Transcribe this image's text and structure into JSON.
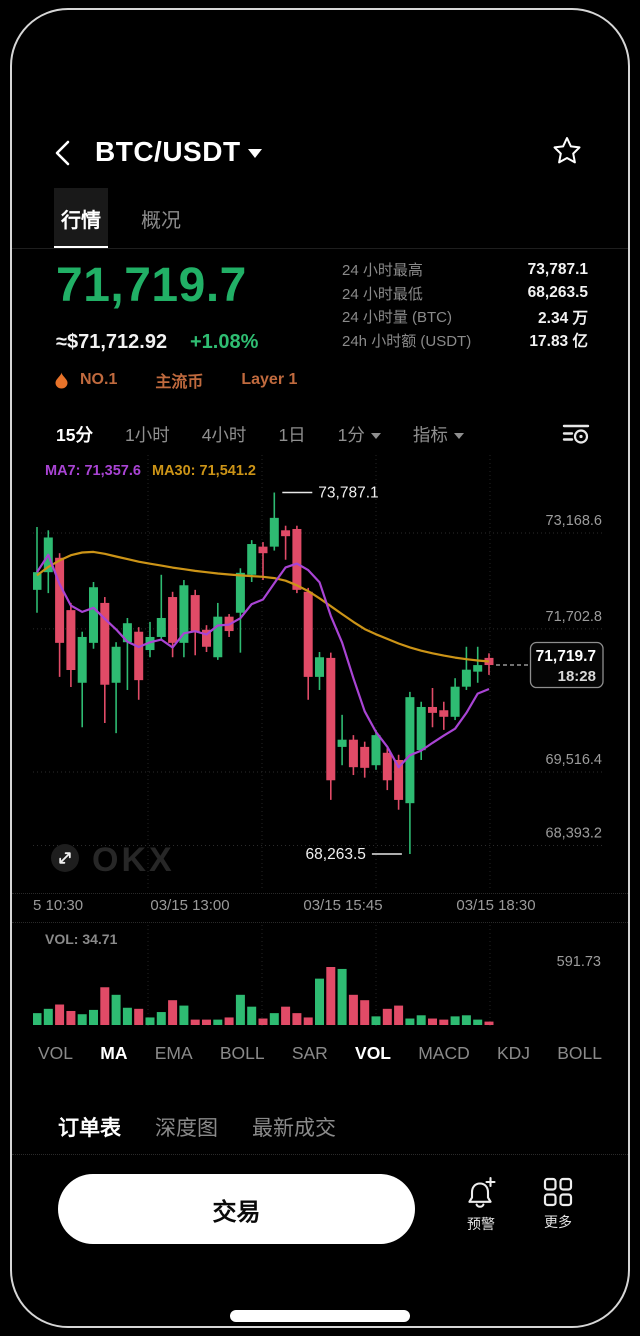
{
  "header": {
    "title": "BTC/USDT"
  },
  "nav_tabs": {
    "items": [
      {
        "label": "行情"
      },
      {
        "label": "概况"
      }
    ],
    "active_index": 0
  },
  "price_panel": {
    "last_price": "71,719.7",
    "fiat_value": "≈$71,712.92",
    "change_pct": "+1.08%",
    "rank_badge": "NO.1",
    "tag_mainstream": "主流币",
    "tag_layer": "Layer 1"
  },
  "stats": {
    "rows": [
      {
        "label": "24 小时最高",
        "value": "73,787.1"
      },
      {
        "label": "24 小时最低",
        "value": "68,263.5"
      },
      {
        "label": "24 小时量 (BTC)",
        "value": "2.34 万"
      },
      {
        "label": "24h 小时额 (USDT)",
        "value": "17.83 亿"
      }
    ]
  },
  "toolbar": {
    "items": [
      {
        "label": "15分",
        "dropdown": false
      },
      {
        "label": "1小时",
        "dropdown": false
      },
      {
        "label": "4小时",
        "dropdown": false
      },
      {
        "label": "1日",
        "dropdown": false
      },
      {
        "label": "1分",
        "dropdown": true
      },
      {
        "label": "指标",
        "dropdown": true
      }
    ],
    "active_index": 0
  },
  "chart_data": {
    "type": "candlestick",
    "ma7_label": "MA7: 71,357.6",
    "ma30_label": "MA30: 71,541.2",
    "colors": {
      "up": "#2ebb72",
      "down": "#e14b67",
      "ma7": "#a944d4",
      "ma30": "#cc9417"
    },
    "y_ticks": [
      {
        "value": 73168.6,
        "label": "73,168.6"
      },
      {
        "value": 71702.8,
        "label": "71,702.8"
      },
      {
        "value": 69516.4,
        "label": "69,516.4"
      },
      {
        "value": 68393.2,
        "label": "68,393.2"
      }
    ],
    "x_labels": [
      "5 10:30",
      "03/15 13:00",
      "03/15 15:45",
      "03/15 18:30"
    ],
    "high_annotation": {
      "value": 73787.1,
      "label": "73,787.1"
    },
    "low_annotation": {
      "value": 68263.5,
      "label": "68,263.5"
    },
    "last_trade": {
      "price_label": "71,719.7",
      "time": "18:28"
    },
    "candles": [
      [
        72300,
        73260,
        71950,
        72570
      ],
      [
        72570,
        73210,
        72250,
        73100
      ],
      [
        72790,
        72860,
        70970,
        71490
      ],
      [
        71990,
        72100,
        70815,
        71075
      ],
      [
        70880,
        71660,
        70200,
        71580
      ],
      [
        71490,
        72420,
        71400,
        72340
      ],
      [
        72100,
        72190,
        70265,
        70850
      ],
      [
        70880,
        71500,
        70110,
        71430
      ],
      [
        71500,
        71870,
        70770,
        71790
      ],
      [
        71660,
        71730,
        70620,
        70920
      ],
      [
        71380,
        71810,
        71270,
        71580
      ],
      [
        71580,
        72530,
        71530,
        71870
      ],
      [
        72190,
        72270,
        71270,
        71490
      ],
      [
        71490,
        72450,
        71270,
        72370
      ],
      [
        72220,
        72300,
        71300,
        71660
      ],
      [
        71690,
        71760,
        71350,
        71430
      ],
      [
        71270,
        72100,
        71230,
        71890
      ],
      [
        71890,
        71930,
        71580,
        71670
      ],
      [
        71950,
        72630,
        71340,
        72560
      ],
      [
        72530,
        73060,
        72420,
        73000
      ],
      [
        72960,
        73030,
        72450,
        72860
      ],
      [
        72960,
        73787.1,
        72900,
        73400
      ],
      [
        73210,
        73280,
        72760,
        73120
      ],
      [
        73230,
        73280,
        72250,
        72300
      ],
      [
        72270,
        72330,
        70620,
        70970
      ],
      [
        70970,
        71350,
        70770,
        71270
      ],
      [
        71260,
        71340,
        69090,
        69390
      ],
      [
        69900,
        70390,
        69620,
        70010
      ],
      [
        70010,
        70080,
        69470,
        69590
      ],
      [
        69900,
        69980,
        69430,
        69580
      ],
      [
        69620,
        70160,
        69550,
        70080
      ],
      [
        69810,
        69880,
        69240,
        69390
      ],
      [
        69700,
        69780,
        68940,
        69090
      ],
      [
        69040,
        70740,
        68263.5,
        70660
      ],
      [
        69850,
        70590,
        69700,
        70510
      ],
      [
        70510,
        70800,
        70200,
        70420
      ],
      [
        70460,
        70590,
        70160,
        70360
      ],
      [
        70360,
        70950,
        70310,
        70820
      ],
      [
        70820,
        71430,
        70770,
        71080
      ],
      [
        71050,
        71430,
        70880,
        71150
      ],
      [
        71260,
        71330,
        71000,
        71151
      ]
    ],
    "ma30": [
      72520,
      72650,
      72750,
      72830,
      72870,
      72880,
      72850,
      72810,
      72770,
      72730,
      72700,
      72670,
      72640,
      72615,
      72590,
      72570,
      72550,
      72535,
      72520,
      72510,
      72500,
      72480,
      72440,
      72370,
      72280,
      72170,
      72050,
      71930,
      71810,
      71700,
      71620,
      71550,
      71480,
      71420,
      71370,
      71330,
      71295,
      71265,
      71240,
      71220,
      71205
    ],
    "volume": {
      "label": "VOL: 34.71",
      "max_label": "591.73",
      "values": [
        121,
        165,
        209,
        143,
        110,
        154,
        385,
        308,
        176,
        165,
        77,
        132,
        253,
        198,
        55,
        55,
        55,
        77,
        308,
        187,
        66,
        121,
        187,
        121,
        77,
        473,
        591.73,
        572,
        308,
        253,
        88,
        165,
        198,
        66,
        99,
        66,
        55,
        88,
        99,
        55,
        34.71
      ]
    }
  },
  "indicator_bar": {
    "items": [
      "VOL",
      "MA",
      "EMA",
      "BOLL",
      "SAR",
      "VOL",
      "MACD",
      "KDJ",
      "BOLL"
    ],
    "active_indices": [
      1,
      5
    ]
  },
  "orderbook_tabs": {
    "items": [
      {
        "label": "订单表"
      },
      {
        "label": "深度图"
      },
      {
        "label": "最新成交"
      }
    ],
    "active_index": 0
  },
  "footer": {
    "trade_label": "交易",
    "alert_label": "预警",
    "more_label": "更多"
  }
}
